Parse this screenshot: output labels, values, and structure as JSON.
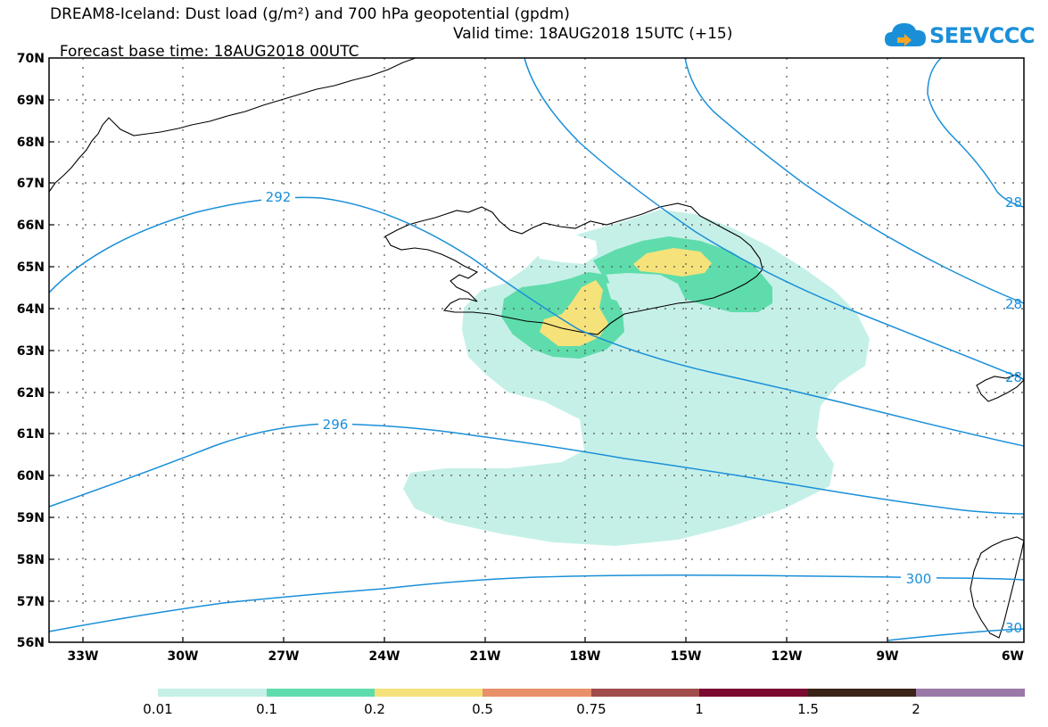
{
  "header": {
    "title_line1": "DREAM8-Iceland: Dust load (g/m²) and 700 hPa geopotential (gpdm)",
    "title_line2a": "Forecast base time: 18AUG2018 00UTC",
    "title_line2b": "Valid time: 18AUG2018 15UTC (+15)"
  },
  "logo": {
    "text": "SEEVCCC",
    "icon": "cloud-icon",
    "color": "#1a8fd8"
  },
  "map": {
    "lat_labels": [
      "70N",
      "69N",
      "68N",
      "67N",
      "66N",
      "65N",
      "64N",
      "63N",
      "62N",
      "61N",
      "60N",
      "59N",
      "58N",
      "57N",
      "56N"
    ],
    "lon_labels": [
      "33W",
      "30W",
      "27W",
      "24W",
      "21W",
      "18W",
      "15W",
      "12W",
      "9W",
      "6W"
    ],
    "contour_labels": [
      "292",
      "296",
      "300",
      "28",
      "28",
      "28",
      "30"
    ],
    "contour_color": "#1a8fd8"
  },
  "colorbar": {
    "labels": [
      "0.01",
      "0.1",
      "0.2",
      "0.5",
      "0.75",
      "1",
      "1.5",
      "2"
    ],
    "colors": [
      "#c5f0e8",
      "#5fdcac",
      "#f5e27a",
      "#e8906a",
      "#a04c4a",
      "#7a0a30",
      "#3a2418",
      "#9a78a8"
    ]
  }
}
